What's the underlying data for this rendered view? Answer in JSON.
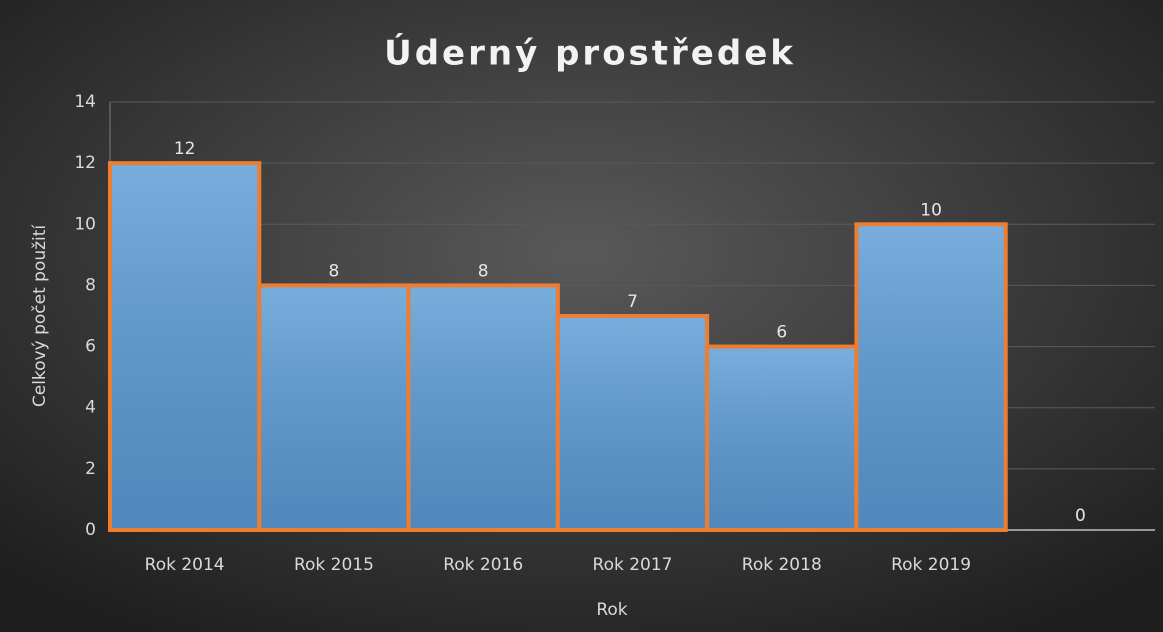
{
  "chart_data": {
    "type": "bar",
    "title": "Úderný prostředek",
    "xlabel": "Rok",
    "ylabel": "Celkový počet použití",
    "categories": [
      "Rok 2014",
      "Rok 2015",
      "Rok 2016",
      "Rok 2017",
      "Rok 2018",
      "Rok 2019",
      null
    ],
    "values": [
      12,
      8,
      8,
      7,
      6,
      10,
      0
    ],
    "color": "#5b9bd5",
    "edgecolor": "#ed7d31",
    "ylim": [
      0,
      14
    ],
    "yticks": [
      0,
      2,
      4,
      6,
      8,
      10,
      12,
      14
    ],
    "grid": true
  }
}
